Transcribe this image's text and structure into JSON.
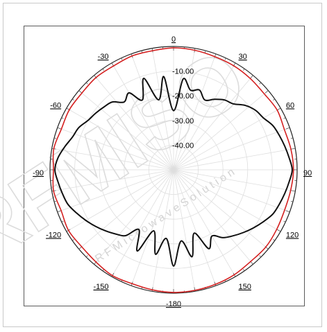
{
  "watermark": {
    "big": "RFMISO",
    "small": "R F M i c r o w a v e   S o l u t i o n"
  },
  "chart_data": {
    "type": "polar-line",
    "title": "",
    "angle_unit": "degrees",
    "angle_zero": "top",
    "angle_direction": "clockwise",
    "r_range": [
      -50,
      0
    ],
    "r_unit": "dB",
    "ring_labels": [
      "-10.00",
      "-20.00",
      "-30.00",
      "-40.00"
    ],
    "ring_values": [
      -10,
      -20,
      -30,
      -40
    ],
    "angle_tick_labels": [
      {
        "angle": 0,
        "label": "0"
      },
      {
        "angle": 30,
        "label": "30"
      },
      {
        "angle": 60,
        "label": "60"
      },
      {
        "angle": 90,
        "label": "90"
      },
      {
        "angle": 120,
        "label": "120"
      },
      {
        "angle": 150,
        "label": "150"
      },
      {
        "angle": 180,
        "label": "-180"
      },
      {
        "angle": -150,
        "label": "-150"
      },
      {
        "angle": -120,
        "label": "-120"
      },
      {
        "angle": -90,
        "label": "-90"
      },
      {
        "angle": -60,
        "label": "-60"
      },
      {
        "angle": -30,
        "label": "-30"
      }
    ],
    "grid": true,
    "legend": "none",
    "series": [
      {
        "color": "#d42020",
        "angles": [
          -180,
          -170,
          -160,
          -150,
          -140,
          -130,
          -120,
          -110,
          -100,
          -90,
          -80,
          -70,
          -60,
          -50,
          -40,
          -30,
          -20,
          -10,
          0,
          10,
          20,
          30,
          40,
          50,
          60,
          70,
          80,
          90,
          100,
          110,
          120,
          130,
          140,
          150,
          160,
          170
        ],
        "values": [
          -0.3,
          -0.6,
          -0.9,
          -0.5,
          -1.2,
          -1.5,
          -0.9,
          -1.6,
          -0.7,
          -1.4,
          -0.8,
          -1.7,
          -1.3,
          -1.6,
          -1.2,
          -1.4,
          -0.9,
          -1.0,
          -0.6,
          -0.8,
          -1.2,
          -1.3,
          -1.7,
          -2.1,
          -1.6,
          -2.3,
          -1.8,
          -1.5,
          -1.9,
          -2.2,
          -1.8,
          -1.3,
          -1.5,
          -0.9,
          -0.6,
          -0.4
        ]
      },
      {
        "color": "#111111",
        "angles": [
          -180,
          -174,
          -168,
          -162,
          -156,
          -150,
          -144,
          -138,
          -132,
          -126,
          -120,
          -114,
          -108,
          -102,
          -96,
          -90,
          -84,
          -78,
          -72,
          -66,
          -60,
          -54,
          -48,
          -42,
          -36,
          -30,
          -24,
          -18,
          -12,
          -6,
          0,
          6,
          12,
          18,
          24,
          30,
          36,
          42,
          48,
          54,
          60,
          66,
          72,
          78,
          84,
          90,
          96,
          102,
          108,
          114,
          120,
          126,
          132,
          138,
          144,
          150,
          156,
          162,
          168,
          174
        ],
        "values": [
          -11,
          -22,
          -15,
          -24,
          -14,
          -22,
          -17,
          -15,
          -13,
          -11,
          -9,
          -7,
          -5,
          -4,
          -3,
          -2,
          -3,
          -5,
          -7,
          -8,
          -10,
          -11,
          -12,
          -13,
          -16,
          -14,
          -19,
          -11,
          -21,
          -12,
          -26,
          -13,
          -17,
          -16,
          -19,
          -17,
          -15,
          -14,
          -11,
          -9,
          -8,
          -6,
          -5,
          -4,
          -3,
          -2,
          -3,
          -4,
          -5,
          -6,
          -8,
          -10,
          -12,
          -14,
          -16,
          -19,
          -15,
          -23,
          -14,
          -21
        ]
      }
    ]
  }
}
